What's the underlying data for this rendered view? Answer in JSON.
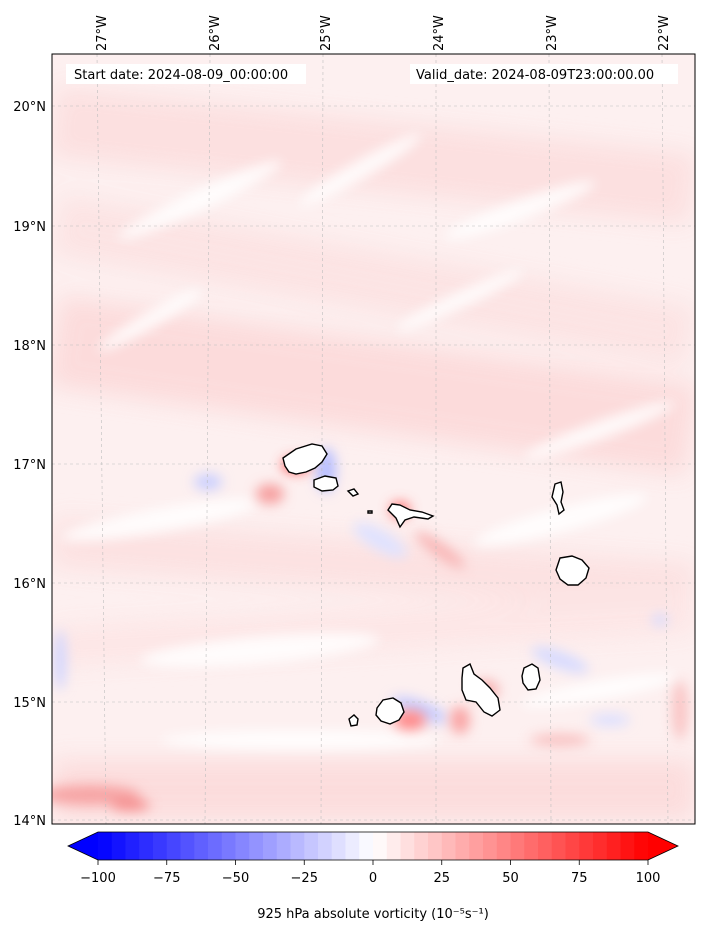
{
  "header": {
    "start_date": "Start date: 2024-08-09_00:00:00",
    "valid_date": "Valid_date: 2024-08-09T23:00:00.00"
  },
  "map": {
    "lon_labels": [
      "27°W",
      "26°W",
      "25°W",
      "24°W",
      "23°W",
      "22°W"
    ],
    "lat_labels": [
      "20°N",
      "19°N",
      "18°N",
      "17°N",
      "16°N",
      "15°N",
      "14°N"
    ],
    "gridlines": "dashed",
    "islands": [
      "santo-antao",
      "sao-vicente",
      "santa-luzia",
      "branco",
      "sao-nicolau",
      "sal",
      "boa-vista",
      "santiago",
      "maio",
      "fogo",
      "brava"
    ]
  },
  "colorbar": {
    "label": "925 hPa absolute vorticity (10⁻⁵s⁻¹)",
    "ticks": [
      "−100",
      "−75",
      "−50",
      "−25",
      "0",
      "25",
      "50",
      "75",
      "100"
    ],
    "min": -100,
    "max": 100,
    "levels": 40,
    "colors": {
      "low": "#0000ff",
      "mid": "#ffffff",
      "high": "#ff0000"
    },
    "extend": "both"
  },
  "colors": {
    "background_pink": "#fde8e8",
    "light_pink": "#fbd4d4",
    "blue_patch": "#d8dcff",
    "coast": "#000000"
  }
}
